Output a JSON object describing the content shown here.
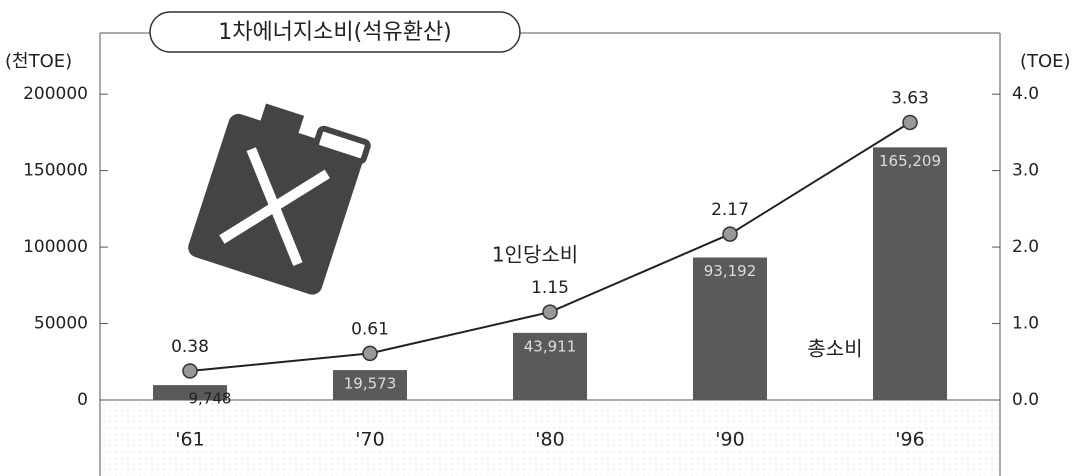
{
  "chart_data": {
    "type": "bar-line",
    "title": "1차에너지소비(석유환산)",
    "ylabel": "(천TOE)",
    "y2label": "(TOE)",
    "categories": [
      "'61",
      "'70",
      "'80",
      "'90",
      "'96"
    ],
    "series": [
      {
        "name": "총소비",
        "type": "bar",
        "color": "#5a5a5a",
        "values": [
          9748,
          19573,
          43911,
          93192,
          165209
        ],
        "value_labels": [
          "9,748",
          "19,573",
          "43,911",
          "93,192",
          "165,209"
        ]
      },
      {
        "name": "1인당소비",
        "type": "line",
        "axis": "y2",
        "color": "#222222",
        "values": [
          0.38,
          0.61,
          1.15,
          2.17,
          3.63
        ]
      }
    ],
    "ylim": [
      0,
      240000
    ],
    "yticks": [
      0,
      50000,
      100000,
      150000,
      200000
    ],
    "y2lim": [
      0,
      4.8
    ],
    "y2ticks": [
      {
        "value": 0,
        "label": "0.0"
      },
      {
        "value": 1,
        "label": "1.0"
      },
      {
        "value": 2,
        "label": "2.0"
      },
      {
        "value": 3,
        "label": "3.0"
      },
      {
        "value": 4,
        "label": "4.0"
      }
    ]
  }
}
